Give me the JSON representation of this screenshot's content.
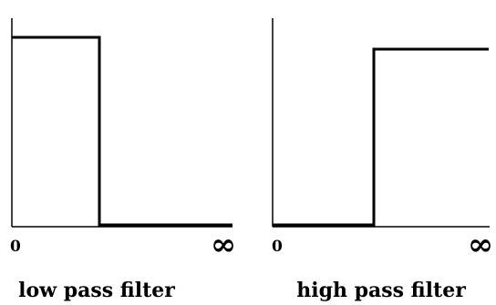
{
  "panels": [
    {
      "caption": "low pass filter",
      "origin_label": "0",
      "infinity_label": "∞",
      "response": "pass below cutoff, stop above cutoff"
    },
    {
      "caption": "high pass filter",
      "origin_label": "0",
      "infinity_label": "∞",
      "response": "stop below cutoff, pass above cutoff"
    }
  ],
  "colors": {
    "line": "#000000",
    "background": "#ffffff"
  }
}
